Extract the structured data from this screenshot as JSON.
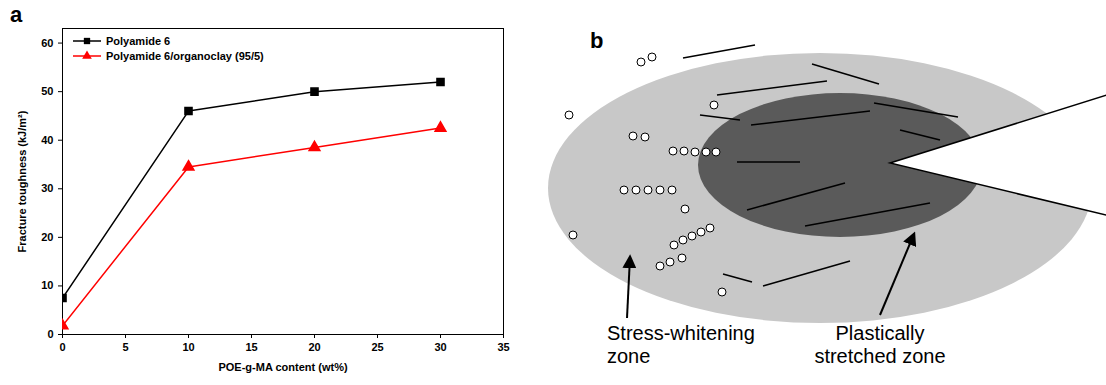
{
  "chart_data": {
    "type": "line",
    "panel_label": "a",
    "x_label": "POE-g-MA content (wt%)",
    "y_label": "Fracture toughness (kJ/m²)",
    "x": [
      0,
      10,
      20,
      30
    ],
    "series": [
      {
        "name": "Polyamide 6",
        "color": "#000000",
        "marker": "square",
        "line_style": "solid",
        "values": [
          7.5,
          46,
          50,
          52
        ]
      },
      {
        "name": "Polyamide 6/organoclay (95/5)",
        "color": "#ff0000",
        "marker": "triangle",
        "line_style": "solid",
        "values": [
          1.8,
          34.5,
          38.5,
          42.5
        ]
      }
    ],
    "xlim": [
      0,
      35
    ],
    "xticks": [
      0,
      5,
      10,
      15,
      20,
      25,
      30,
      35
    ],
    "ylim": [
      0,
      63
    ],
    "yticks": [
      0,
      10,
      20,
      30,
      40,
      50,
      60
    ],
    "grid": false,
    "legend": "top-left"
  },
  "diagram": {
    "panel_label": "b",
    "outer_zone_label": "Stress-whitening zone",
    "inner_zone_label": "Plastically stretched zone"
  }
}
